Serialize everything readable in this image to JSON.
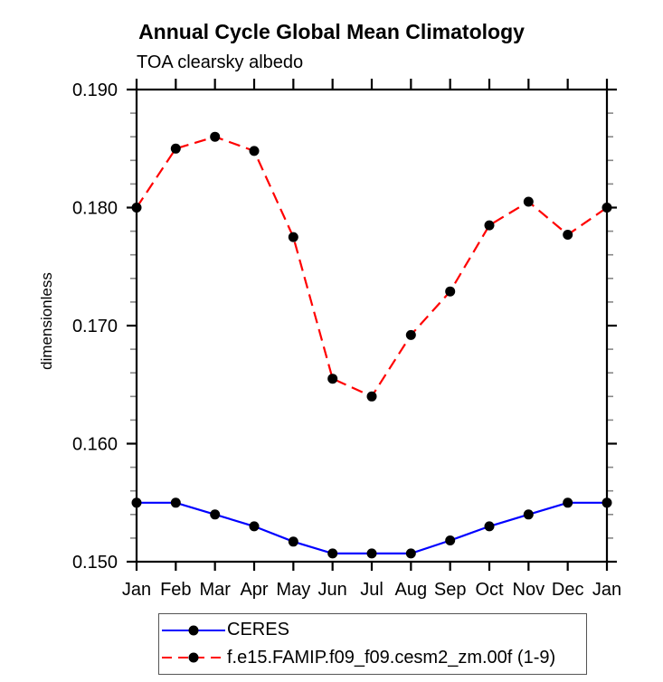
{
  "chart_data": {
    "type": "line",
    "title": "Annual Cycle Global Mean Climatology",
    "subtitle": "TOA clearsky albedo",
    "ylabel": "dimensionless",
    "xlabel": "",
    "categories": [
      "Jan",
      "Feb",
      "Mar",
      "Apr",
      "May",
      "Jun",
      "Jul",
      "Aug",
      "Sep",
      "Oct",
      "Nov",
      "Dec",
      "Jan"
    ],
    "ylim": [
      0.15,
      0.19
    ],
    "ytick_step": 0.01,
    "ytick_minor_step": 0.002,
    "ytick_labels": [
      "0.150",
      "0.160",
      "0.170",
      "0.180",
      "0.190"
    ],
    "grid": false,
    "legend_position": "bottom",
    "axis_color": "#000000",
    "minor_tick_color": "#888888",
    "series": [
      {
        "name": "CERES",
        "color": "#0000ff",
        "line_style": "solid",
        "marker": "circle",
        "marker_color": "#000000",
        "values": [
          0.155,
          0.155,
          0.154,
          0.153,
          0.1517,
          0.1507,
          0.1507,
          0.1507,
          0.1518,
          0.153,
          0.154,
          0.155,
          0.155
        ]
      },
      {
        "name": "f.e15.FAMIP.f09_f09.cesm2_zm.00f (1-9)",
        "color": "#ff0000",
        "line_style": "dashed",
        "marker": "circle",
        "marker_color": "#000000",
        "values": [
          0.18,
          0.185,
          0.186,
          0.1848,
          0.1775,
          0.1655,
          0.164,
          0.1692,
          0.1729,
          0.1785,
          0.1805,
          0.1777,
          0.18
        ]
      }
    ]
  }
}
